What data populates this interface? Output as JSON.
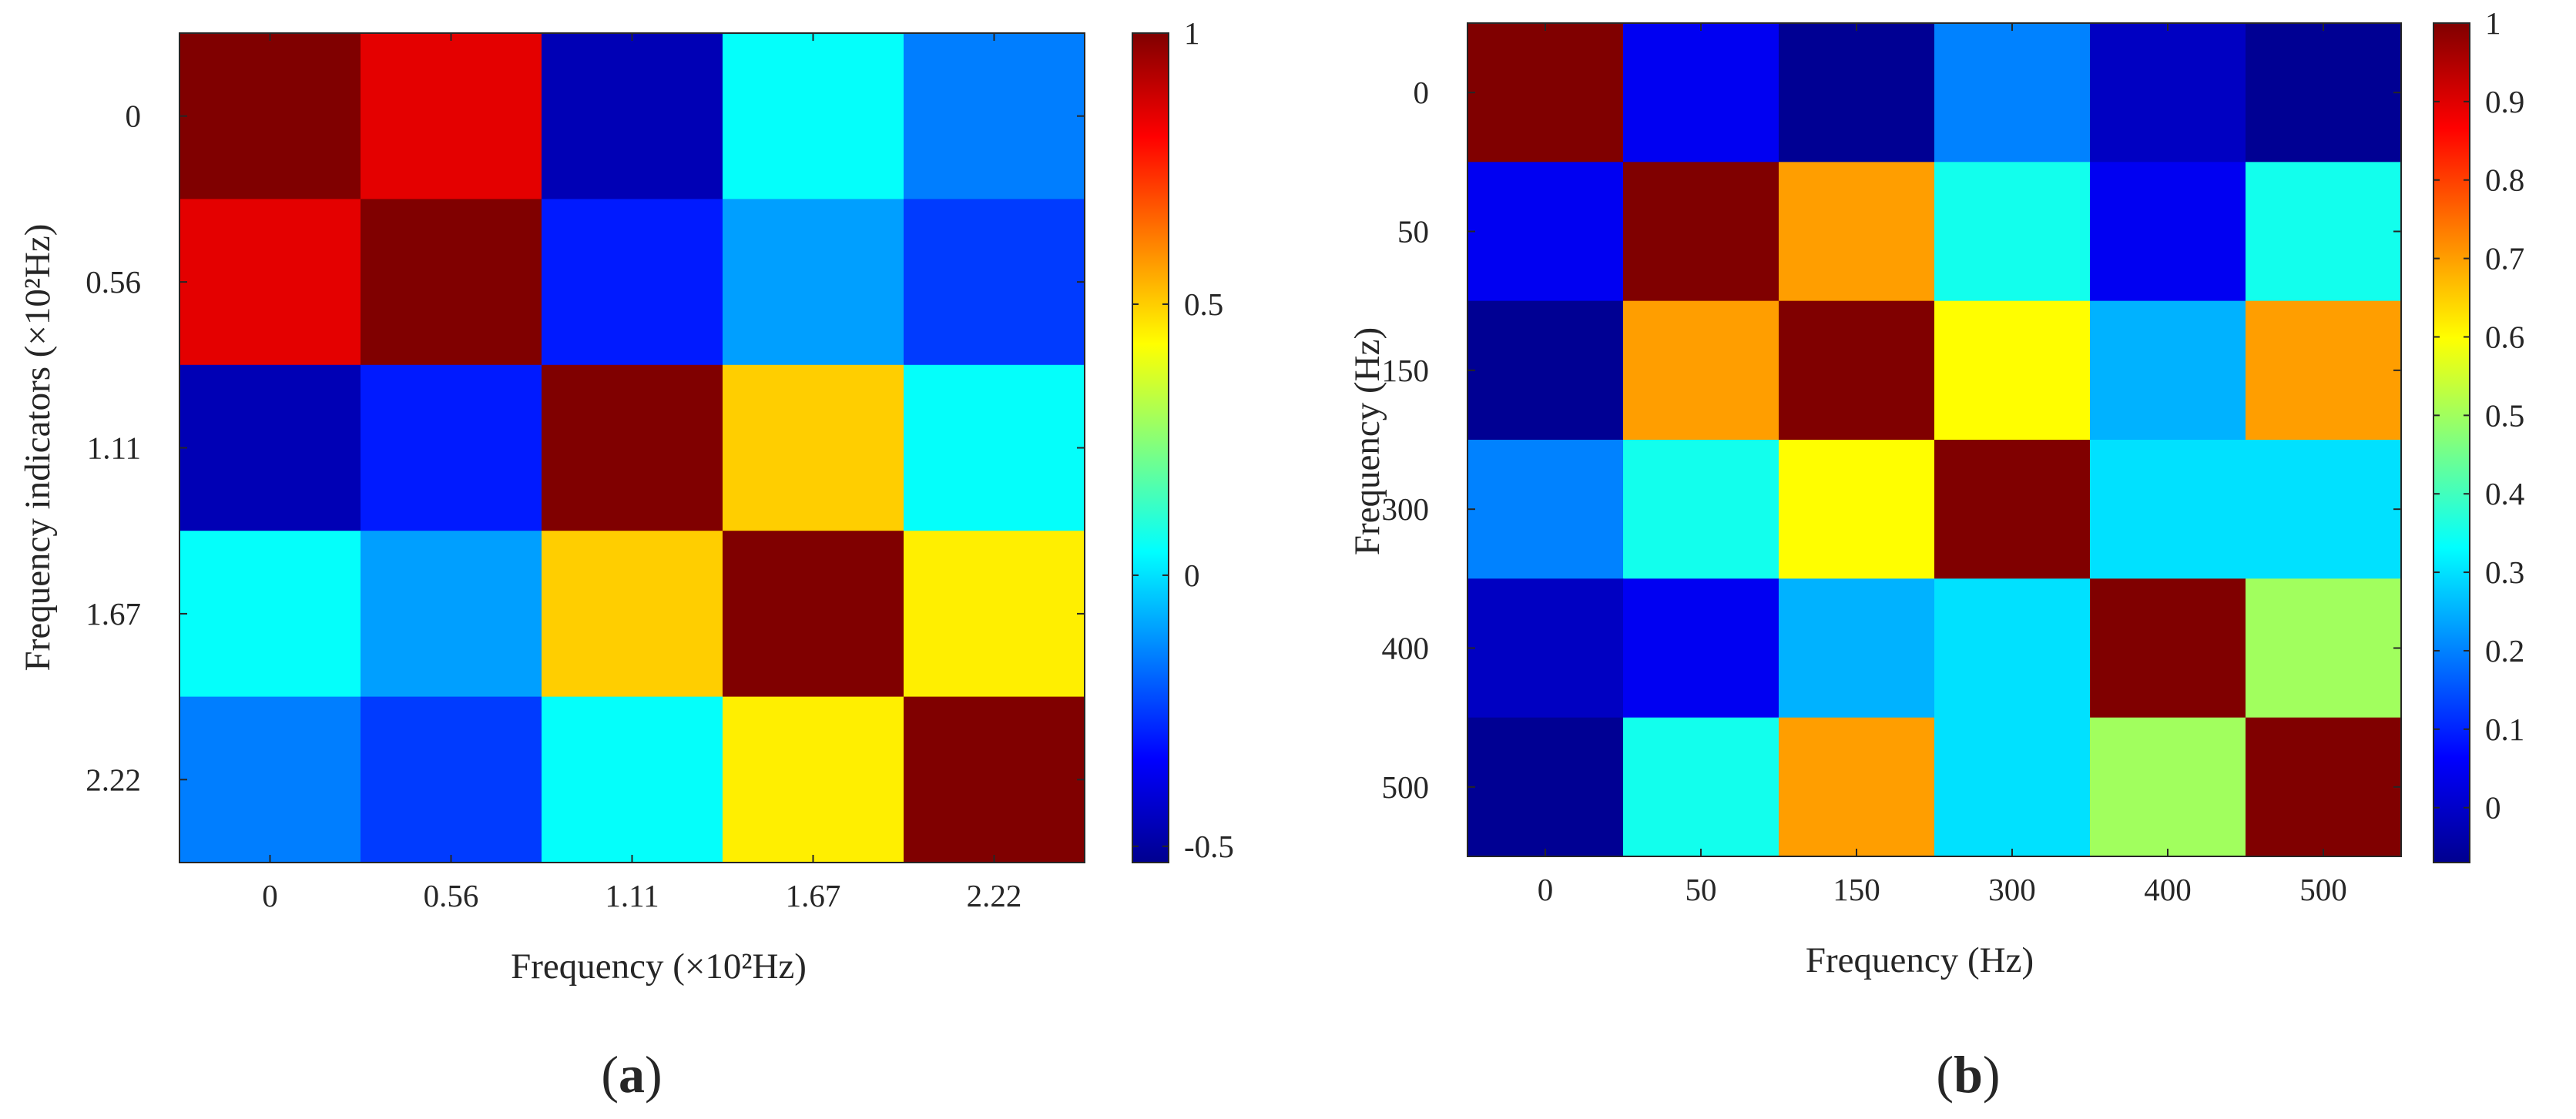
{
  "figure": {
    "panels": [
      {
        "label_open": "(",
        "label_letter": "a",
        "label_close": ")"
      },
      {
        "label_open": "(",
        "label_letter": "b",
        "label_close": ")"
      }
    ]
  },
  "colormap": "jet",
  "chart_data": [
    {
      "type": "heatmap",
      "panel": "a",
      "xlabel": "Frequency (×10²Hz)",
      "ylabel": "Frequency indicators (×10²Hz)",
      "x_categories": [
        "0",
        "0.56",
        "1.11",
        "1.67",
        "2.22"
      ],
      "y_categories": [
        "0",
        "0.56",
        "1.11",
        "1.67",
        "2.22"
      ],
      "values": [
        [
          1.0,
          0.85,
          -0.45,
          0.05,
          -0.15
        ],
        [
          0.85,
          1.0,
          -0.3,
          -0.1,
          -0.25
        ],
        [
          -0.45,
          -0.3,
          1.0,
          0.5,
          0.05
        ],
        [
          0.05,
          -0.1,
          0.5,
          1.0,
          0.45
        ],
        [
          -0.15,
          -0.25,
          0.05,
          0.45,
          1.0
        ]
      ],
      "clim": [
        -0.53,
        1.0
      ],
      "colorbar_ticks": [
        1,
        0.5,
        0,
        -0.5
      ],
      "colorbar_tick_labels": [
        "1",
        "0.5",
        "0",
        "-0.5"
      ]
    },
    {
      "type": "heatmap",
      "panel": "b",
      "xlabel": "Frequency (Hz)",
      "ylabel": "Frequency (Hz)",
      "x_categories": [
        "0",
        "50",
        "150",
        "300",
        "400",
        "500"
      ],
      "y_categories": [
        "0",
        "50",
        "150",
        "300",
        "400",
        "500"
      ],
      "values": [
        [
          1.0,
          0.05,
          -0.05,
          0.2,
          0.0,
          -0.05
        ],
        [
          0.05,
          1.0,
          0.7,
          0.35,
          0.05,
          0.35
        ],
        [
          -0.05,
          0.7,
          1.0,
          0.6,
          0.25,
          0.7
        ],
        [
          0.2,
          0.35,
          0.6,
          1.0,
          0.3,
          0.3
        ],
        [
          0.0,
          0.05,
          0.25,
          0.3,
          1.0,
          0.5
        ],
        [
          -0.05,
          0.35,
          0.7,
          0.3,
          0.5,
          1.0
        ]
      ],
      "clim": [
        -0.07,
        1.0
      ],
      "colorbar_ticks": [
        1,
        0.9,
        0.8,
        0.7,
        0.6,
        0.5,
        0.4,
        0.3,
        0.2,
        0.1,
        0
      ],
      "colorbar_tick_labels": [
        "1",
        "0.9",
        "0.8",
        "0.7",
        "0.6",
        "0.5",
        "0.4",
        "0.3",
        "0.2",
        "0.1",
        "0"
      ]
    }
  ]
}
